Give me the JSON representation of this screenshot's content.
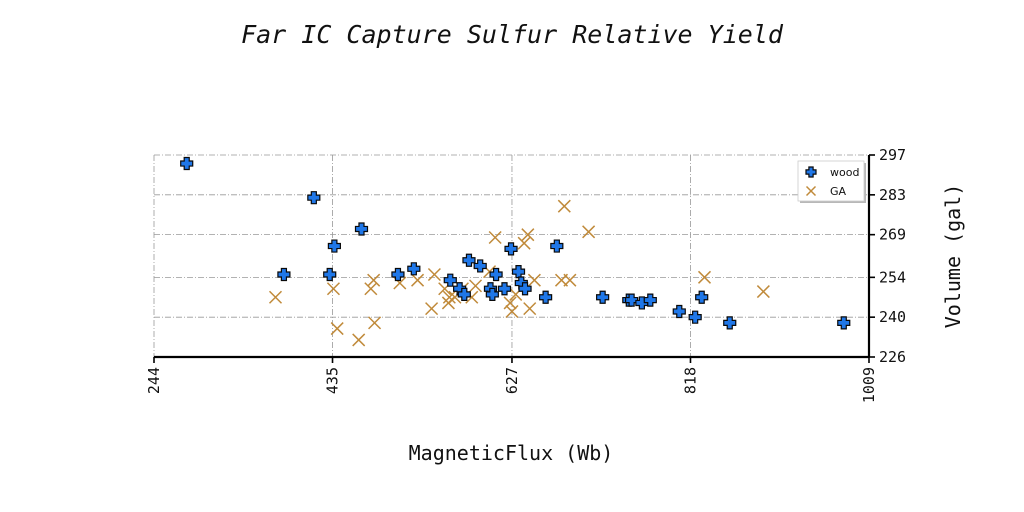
{
  "chart_data": {
    "type": "scatter",
    "title": "Far IC Capture Sulfur Relative Yield",
    "xlabel": "MagneticFlux (Wb)",
    "ylabel": "Volume (gal)",
    "xlim": [
      244,
      1009
    ],
    "ylim": [
      226,
      297
    ],
    "xticks": [
      "244",
      "435",
      "627",
      "818",
      "1009"
    ],
    "yticks": [
      "226",
      "240",
      "254",
      "269",
      "283",
      "297"
    ],
    "grid": true,
    "x_axis_position": "bottom",
    "y_axis_position": "right",
    "legend_position": "top-right",
    "series": [
      {
        "name": "wood",
        "marker": "plus-filled",
        "color": "#1f77e8",
        "points": [
          [
            279,
            294
          ],
          [
            383,
            255
          ],
          [
            415,
            282
          ],
          [
            432,
            255
          ],
          [
            437,
            265
          ],
          [
            466,
            271
          ],
          [
            505,
            255
          ],
          [
            522,
            257
          ],
          [
            561,
            253
          ],
          [
            571,
            250
          ],
          [
            576,
            248
          ],
          [
            581,
            260
          ],
          [
            593,
            258
          ],
          [
            604,
            250
          ],
          [
            606,
            248
          ],
          [
            610,
            255
          ],
          [
            619,
            250
          ],
          [
            626,
            264
          ],
          [
            634,
            256
          ],
          [
            637,
            252
          ],
          [
            641,
            250
          ],
          [
            663,
            247
          ],
          [
            675,
            265
          ],
          [
            724,
            247
          ],
          [
            752,
            246
          ],
          [
            755,
            246
          ],
          [
            766,
            245
          ],
          [
            775,
            246
          ],
          [
            806,
            242
          ],
          [
            823,
            240
          ],
          [
            830,
            247
          ],
          [
            860,
            238
          ],
          [
            982,
            238
          ]
        ]
      },
      {
        "name": "GA",
        "marker": "x",
        "color": "#c08a3a",
        "points": [
          [
            374,
            247
          ],
          [
            436,
            250
          ],
          [
            440,
            236
          ],
          [
            463,
            232
          ],
          [
            476,
            250
          ],
          [
            479,
            253
          ],
          [
            480,
            238
          ],
          [
            507,
            252
          ],
          [
            526,
            253
          ],
          [
            541,
            243
          ],
          [
            544,
            255
          ],
          [
            555,
            250
          ],
          [
            559,
            245
          ],
          [
            560,
            247
          ],
          [
            566,
            247
          ],
          [
            574,
            250
          ],
          [
            584,
            247
          ],
          [
            588,
            251
          ],
          [
            603,
            256
          ],
          [
            609,
            268
          ],
          [
            625,
            245
          ],
          [
            627,
            242
          ],
          [
            631,
            248
          ],
          [
            640,
            266
          ],
          [
            644,
            269
          ],
          [
            646,
            243
          ],
          [
            651,
            253
          ],
          [
            680,
            253
          ],
          [
            683,
            279
          ],
          [
            689,
            253
          ],
          [
            709,
            270
          ],
          [
            833,
            254
          ],
          [
            896,
            249
          ]
        ]
      }
    ]
  }
}
